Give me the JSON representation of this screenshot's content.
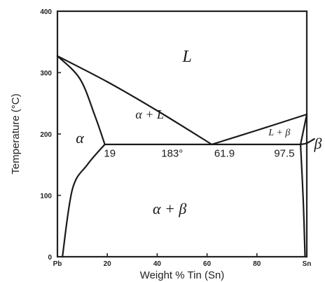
{
  "chart_data": {
    "type": "line",
    "title": "",
    "xlabel": "Weight % Tin (Sn)",
    "ylabel": "Temperature (°C)",
    "xlim": [
      0,
      100
    ],
    "ylim": [
      0,
      400
    ],
    "x_ticks": [
      {
        "value": 0,
        "label": "Pb"
      },
      {
        "value": 20,
        "label": "20"
      },
      {
        "value": 40,
        "label": "40"
      },
      {
        "value": 60,
        "label": "60"
      },
      {
        "value": 80,
        "label": "80"
      },
      {
        "value": 100,
        "label": "Sn"
      }
    ],
    "y_ticks": [
      {
        "value": 0,
        "label": "0"
      },
      {
        "value": 100,
        "label": "100"
      },
      {
        "value": 200,
        "label": "200"
      },
      {
        "value": 300,
        "label": "300"
      },
      {
        "value": 400,
        "label": "400"
      }
    ],
    "series": [
      {
        "key": "liquidus-left",
        "points": [
          [
            0,
            327
          ],
          [
            20,
            285
          ],
          [
            40,
            238
          ],
          [
            61.9,
            183
          ]
        ]
      },
      {
        "key": "liquidus-right",
        "points": [
          [
            61.9,
            183
          ],
          [
            80,
            206
          ],
          [
            100,
            232
          ]
        ]
      },
      {
        "key": "eutectic-isotherm",
        "points": [
          [
            19,
            183
          ],
          [
            97.5,
            183
          ]
        ]
      },
      {
        "key": "solidus-alpha",
        "points": [
          [
            0,
            327
          ],
          [
            9,
            290
          ],
          [
            15,
            230
          ],
          [
            19,
            183
          ]
        ]
      },
      {
        "key": "solvus-alpha",
        "points": [
          [
            19,
            183
          ],
          [
            12,
            150
          ],
          [
            6,
            110
          ],
          [
            2,
            0
          ]
        ]
      },
      {
        "key": "solidus-beta",
        "points": [
          [
            97.5,
            183
          ],
          [
            100,
            232
          ]
        ]
      },
      {
        "key": "solvus-beta",
        "points": [
          [
            97.5,
            183
          ],
          [
            98.6,
            90
          ],
          [
            99.3,
            0
          ]
        ]
      },
      {
        "key": "beta-pointer",
        "points": [
          [
            97.5,
            183
          ],
          [
            100,
            185
          ],
          [
            103,
            192
          ]
        ]
      }
    ],
    "region_labels": [
      {
        "key": "L",
        "text": "L",
        "x": 52,
        "y": 318,
        "size": 24
      },
      {
        "key": "alpha-plus-liquid",
        "text": "α + L",
        "x": 37,
        "y": 225,
        "size": 18
      },
      {
        "key": "alpha",
        "text": "α",
        "x": 9,
        "y": 185,
        "size": 22
      },
      {
        "key": "liquid-plus-beta",
        "text": "L + β",
        "x": 89,
        "y": 198,
        "size": 14
      },
      {
        "key": "beta",
        "text": "β",
        "x": 104.5,
        "y": 176,
        "size": 22
      },
      {
        "key": "alpha-plus-beta",
        "text": "α + β",
        "x": 45,
        "y": 70,
        "size": 22
      }
    ],
    "point_labels": [
      {
        "key": "eutectic-alpha-composition",
        "text": "19",
        "x": 21,
        "y": 163
      },
      {
        "key": "eutectic-temperature",
        "text": "183°",
        "x": 46,
        "y": 163
      },
      {
        "key": "eutectic-composition",
        "text": "61.9",
        "x": 67,
        "y": 163
      },
      {
        "key": "eutectic-beta-composition",
        "text": "97.5",
        "x": 91,
        "y": 163
      }
    ]
  }
}
